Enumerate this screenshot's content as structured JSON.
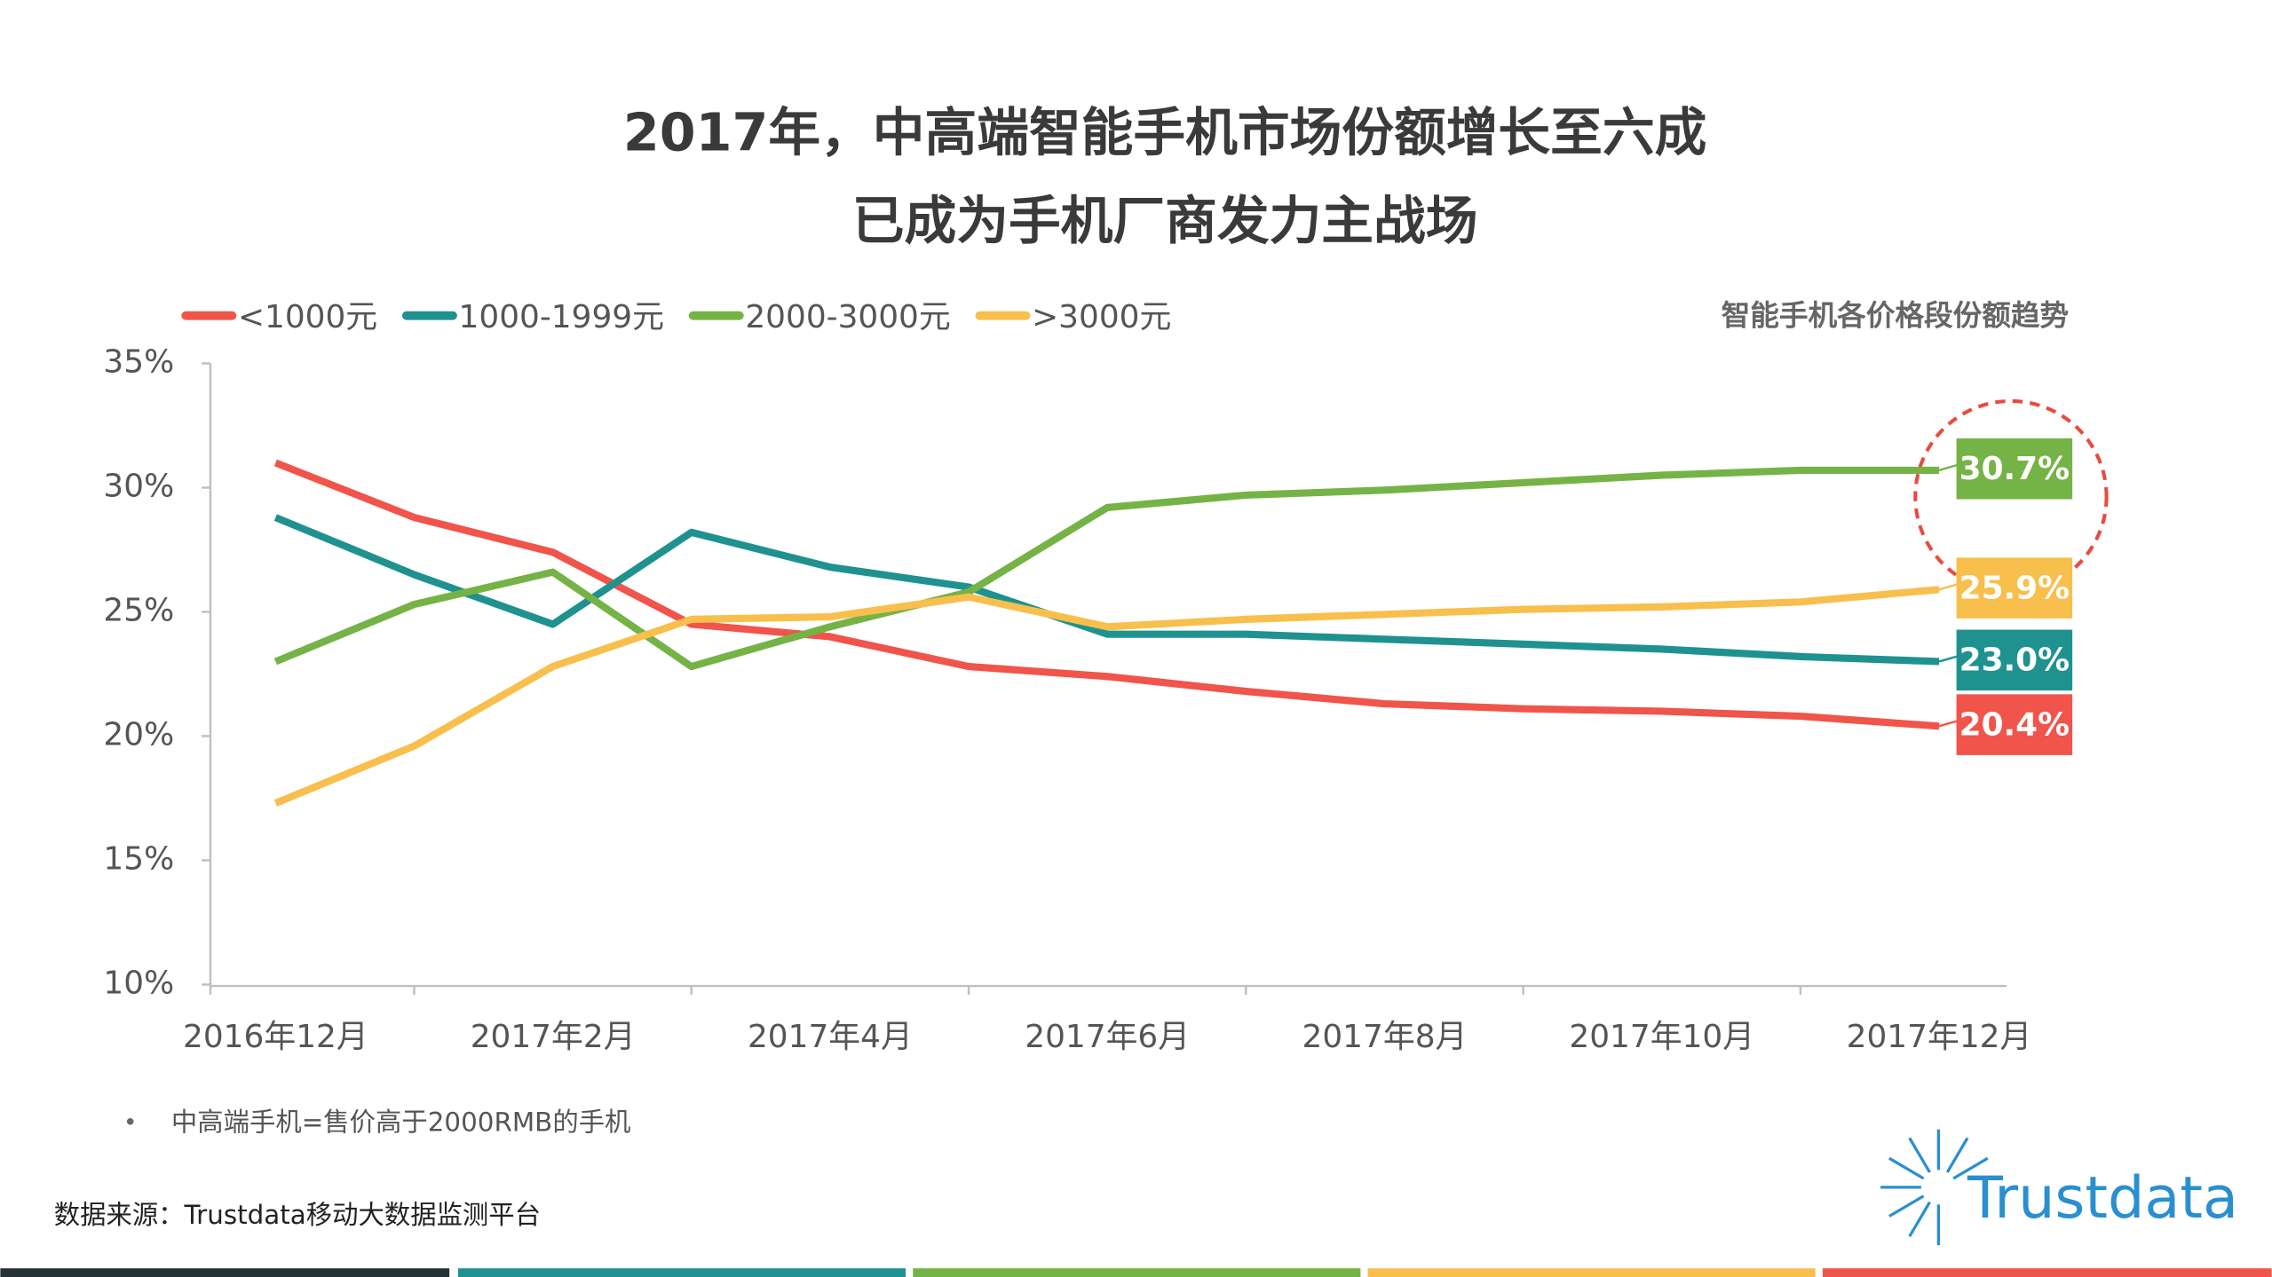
{
  "chart_data": {
    "type": "line",
    "title": [
      "2017年，中高端智能手机市场份额增长至六成",
      "已成为手机厂商发力主战场"
    ],
    "caption": "智能手机各价格段份额趋势",
    "categories": [
      "2016年12月",
      null,
      "2017年2月",
      null,
      "2017年4月",
      null,
      "2017年6月",
      null,
      "2017年8月",
      null,
      "2017年10月",
      null,
      "2017年12月"
    ],
    "series": [
      {
        "name": "<1000元",
        "color": "#f0544a",
        "values": [
          31.0,
          28.8,
          27.4,
          24.5,
          24.0,
          22.8,
          22.4,
          21.8,
          21.3,
          21.1,
          21.0,
          20.8,
          20.4
        ],
        "value_labels": [
          null,
          null,
          null,
          null,
          null,
          null,
          null,
          null,
          null,
          null,
          null,
          null,
          "20.4%"
        ]
      },
      {
        "name": "1000-1999元",
        "color": "#1f9290",
        "values": [
          28.8,
          26.5,
          24.5,
          28.2,
          26.8,
          26.0,
          24.1,
          24.1,
          23.9,
          23.7,
          23.5,
          23.2,
          23.0
        ],
        "value_labels": [
          null,
          null,
          null,
          null,
          null,
          null,
          null,
          null,
          null,
          null,
          null,
          null,
          "23.0%"
        ]
      },
      {
        "name": "2000-3000元",
        "color": "#76b346",
        "values": [
          23.0,
          25.3,
          26.6,
          22.8,
          24.4,
          25.8,
          29.2,
          29.7,
          29.9,
          30.2,
          30.5,
          30.7,
          30.7
        ],
        "value_labels": [
          null,
          null,
          null,
          null,
          null,
          null,
          null,
          null,
          null,
          null,
          null,
          null,
          "30.7%"
        ]
      },
      {
        "name": ">3000元",
        "color": "#f8bf4d",
        "values": [
          17.3,
          19.6,
          22.8,
          24.7,
          24.8,
          25.6,
          24.4,
          24.7,
          24.9,
          25.1,
          25.2,
          25.4,
          25.9
        ],
        "value_labels": [
          null,
          null,
          null,
          null,
          null,
          null,
          null,
          null,
          null,
          null,
          null,
          null,
          "25.9%"
        ]
      }
    ],
    "ylim": [
      10,
      35
    ],
    "yticks": [
      {
        "value": 10,
        "label": "10%"
      },
      {
        "value": 15,
        "label": "15%"
      },
      {
        "value": 20,
        "label": "20%"
      },
      {
        "value": 25,
        "label": "25%"
      },
      {
        "value": 30,
        "label": "30%"
      },
      {
        "value": 35,
        "label": "35%"
      }
    ],
    "grid": false,
    "legend": "top-left"
  },
  "note": "中高端手机=售价高于2000RMB的手机",
  "source": "数据来源：Trustdata移动大数据监测平台",
  "logo": "Trustdata"
}
